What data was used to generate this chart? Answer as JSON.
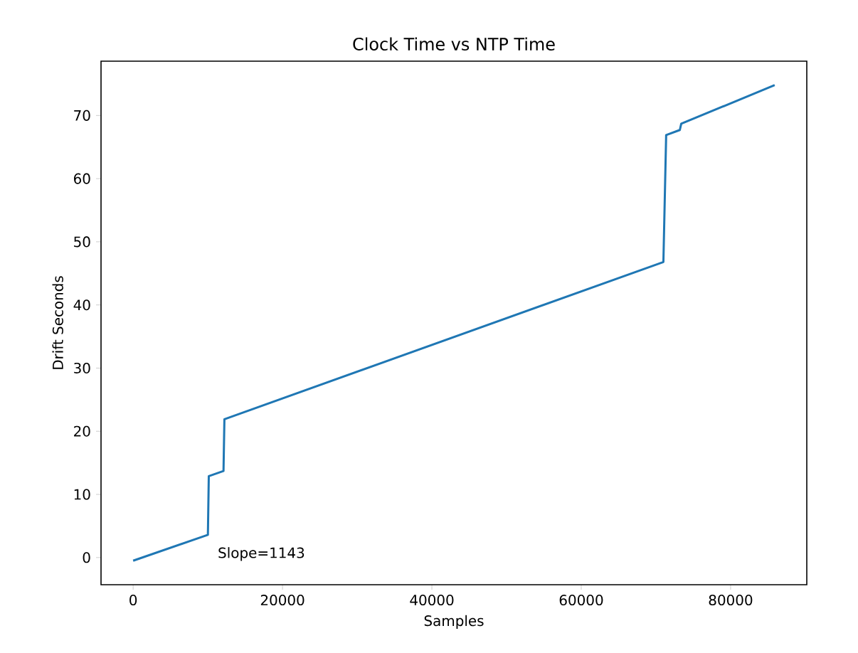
{
  "chart_data": {
    "type": "line",
    "title": "Clock Time vs NTP Time",
    "xlabel": "Samples",
    "ylabel": "Drift Seconds",
    "annotations": [
      "Slope=1143"
    ],
    "x": [
      0,
      10010,
      10130,
      12100,
      12220,
      71000,
      71370,
      73200,
      73390,
      85900
    ],
    "series": [
      {
        "color": "#1f77b4",
        "values": [
          -0.5,
          3.6,
          12.9,
          13.7,
          21.9,
          46.8,
          66.9,
          67.7,
          68.7,
          74.8
        ]
      }
    ],
    "xlim": [
      -4300,
      90200
    ],
    "ylim": [
      -4.3,
      78.6
    ],
    "xticks": [
      0,
      20000,
      40000,
      60000,
      80000
    ],
    "yticks": [
      0,
      10,
      20,
      30,
      40,
      50,
      60,
      70
    ],
    "legend": false
  }
}
